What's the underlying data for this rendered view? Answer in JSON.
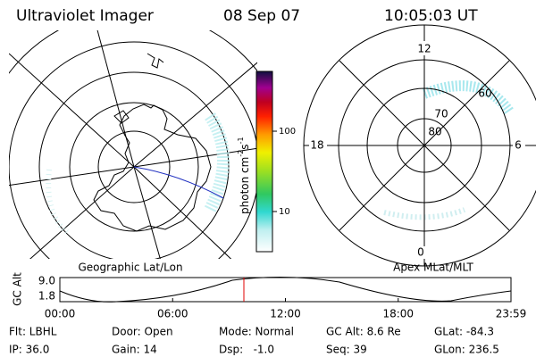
{
  "header": {
    "title": "Ultraviolet Imager",
    "date": "08 Sep 07",
    "time": "10:05:03 UT"
  },
  "left_panel": {
    "label": "Geographic Lat/Lon"
  },
  "colorbar": {
    "label_parts": [
      "photon cm",
      "-2",
      "s",
      "-1"
    ],
    "ticks": [
      "100",
      "10"
    ]
  },
  "right_panel": {
    "label": "Apex MLat/MLT",
    "mlt_labels": [
      "12",
      "18",
      "6",
      "0"
    ],
    "lat_labels": [
      "60",
      "70",
      "80"
    ]
  },
  "altitude_plot": {
    "ylabel": "GC Alt",
    "yticks": [
      "9.0",
      "1.8"
    ],
    "xticks": [
      "00:00",
      "06:00",
      "12:00",
      "18:00",
      "23:59"
    ]
  },
  "footer": {
    "rows": [
      [
        "Flt: LBHL",
        "Door: Open",
        "Mode: Normal",
        "GC Alt: 8.6 Re",
        "GLat: -84.3"
      ],
      [
        "IP: 36.0",
        "Gain: 14",
        "Dsp:   -1.0",
        "Seq: 39",
        "GLon: 236.5"
      ]
    ]
  }
}
